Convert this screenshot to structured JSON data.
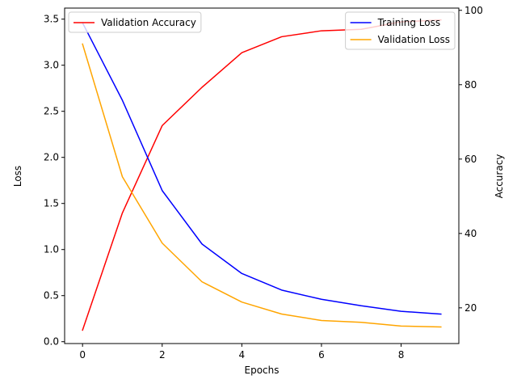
{
  "chart_data": {
    "type": "line",
    "title": "",
    "xlabel": "Epochs",
    "ylabel_left": "Loss",
    "ylabel_right": "Accuracy",
    "x": [
      0,
      1,
      2,
      3,
      4,
      5,
      6,
      7,
      8,
      9
    ],
    "xlim": [
      -0.45,
      9.45
    ],
    "ylim_left": [
      -0.02,
      3.62
    ],
    "ylim_right": [
      10.4,
      100.6
    ],
    "xticks": [
      0,
      2,
      4,
      6,
      8
    ],
    "xtick_labels": [
      "0",
      "2",
      "4",
      "6",
      "8"
    ],
    "yticks_left": [
      0.0,
      0.5,
      1.0,
      1.5,
      2.0,
      2.5,
      3.0,
      3.5
    ],
    "ytick_labels_left": [
      "0.0",
      "0.5",
      "1.0",
      "1.5",
      "2.0",
      "2.5",
      "3.0",
      "3.5"
    ],
    "yticks_right": [
      20,
      40,
      60,
      80,
      100
    ],
    "ytick_labels_right": [
      "20",
      "40",
      "60",
      "80",
      "100"
    ],
    "grid": false,
    "series": [
      {
        "name": "Training Loss",
        "axis": "left",
        "color": "#0000ff",
        "values": [
          3.46,
          2.62,
          1.64,
          1.06,
          0.74,
          0.56,
          0.46,
          0.39,
          0.33,
          0.3
        ]
      },
      {
        "name": "Validation Loss",
        "axis": "left",
        "color": "#ffa500",
        "values": [
          3.23,
          1.79,
          1.07,
          0.65,
          0.43,
          0.3,
          0.23,
          0.21,
          0.17,
          0.16
        ]
      },
      {
        "name": "Validation Accuracy",
        "axis": "right",
        "color": "#ff0000",
        "values": [
          14.0,
          45.5,
          69.0,
          79.3,
          88.6,
          92.9,
          94.5,
          94.9,
          96.9,
          97.4
        ]
      }
    ],
    "legends": [
      {
        "placement": "top-left",
        "entries": [
          "Validation Accuracy"
        ]
      },
      {
        "placement": "top-right",
        "entries": [
          "Training Loss",
          "Validation Loss"
        ]
      }
    ]
  }
}
